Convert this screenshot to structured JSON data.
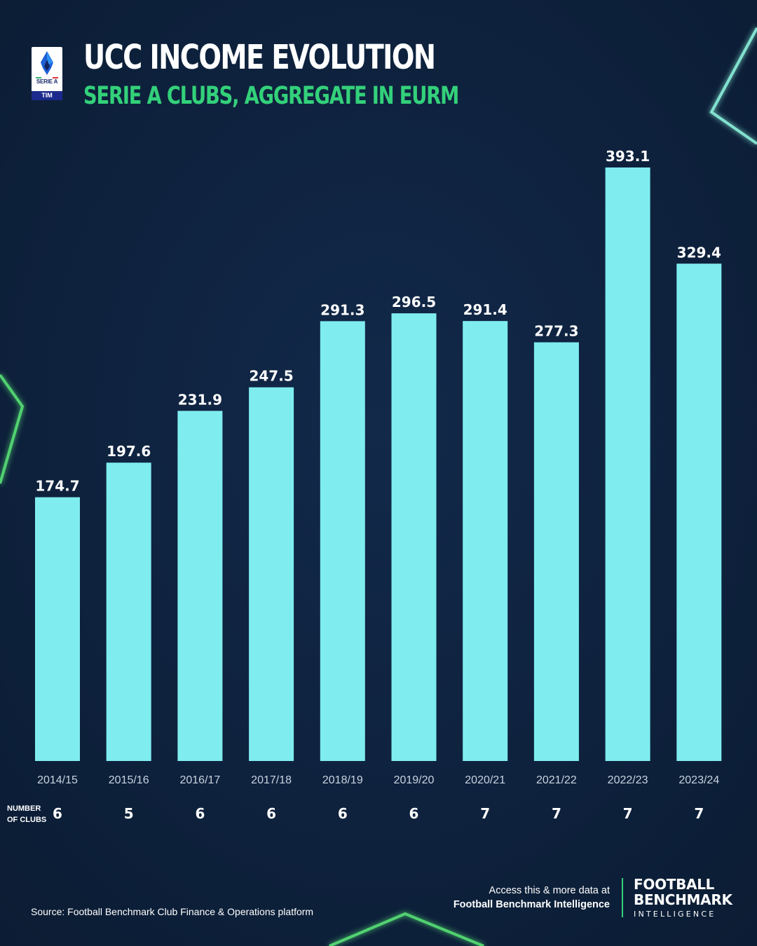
{
  "header": {
    "title": "UCC INCOME EVOLUTION",
    "subtitle": "SERIE A CLUBS, AGGREGATE IN EURM"
  },
  "logo": {
    "text": "SERIE A",
    "tim": "TIM"
  },
  "chart_data": {
    "type": "bar",
    "categories": [
      "2014/15",
      "2015/16",
      "2016/17",
      "2017/18",
      "2018/19",
      "2019/20",
      "2020/21",
      "2021/22",
      "2022/23",
      "2023/24"
    ],
    "values": [
      174.7,
      197.6,
      231.9,
      247.5,
      291.3,
      296.5,
      291.4,
      277.3,
      393.1,
      329.4
    ],
    "ylim": [
      0,
      393.1
    ],
    "title": "UCC INCOME EVOLUTION",
    "subtitle": "SERIE A CLUBS, AGGREGATE IN EURM",
    "bar_color": "#7fedf0",
    "label_color": "#ffffff",
    "grid": false
  },
  "clubs": {
    "label_line1": "NUMBER",
    "label_line2": "OF CLUBS",
    "values": [
      "6",
      "5",
      "6",
      "6",
      "6",
      "6",
      "7",
      "7",
      "7",
      "7"
    ]
  },
  "footer": {
    "source": "Source: Football Benchmark Club Finance & Operations platform",
    "access_line1": "Access this & more data at",
    "access_line2": "Football Benchmark Intelligence",
    "brand_line1": "FOOTBALL",
    "brand_line2": "BENCHMARK",
    "brand_line3": "INTELLIGENCE"
  },
  "colors": {
    "background": "#0f2440",
    "accent": "#33d17a",
    "bar": "#7fedf0",
    "glow": "#6ff5d8"
  }
}
